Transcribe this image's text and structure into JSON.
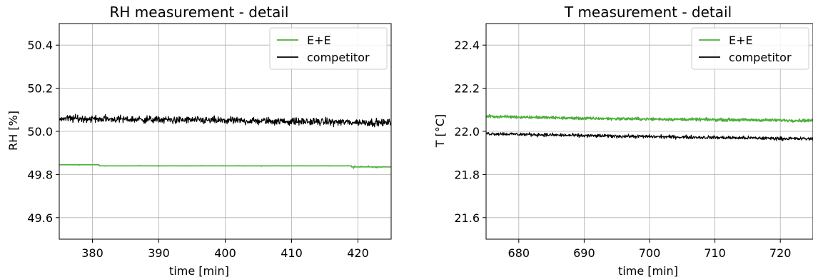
{
  "chart_data": [
    {
      "type": "line",
      "title": "RH measurement - detail",
      "xlabel": "time [min]",
      "ylabel": "RH [%]",
      "xlim": [
        375,
        425
      ],
      "ylim": [
        49.5,
        50.5
      ],
      "xticks": [
        380,
        390,
        400,
        410,
        420
      ],
      "yticks": [
        49.6,
        49.8,
        50.0,
        50.2,
        50.4
      ],
      "xtick_labels": [
        "380",
        "390",
        "400",
        "410",
        "420"
      ],
      "ytick_labels": [
        "49.6",
        "49.8",
        "50.0",
        "50.2",
        "50.4"
      ],
      "grid": true,
      "legend_position": "top-right",
      "series": [
        {
          "name": "E+E",
          "color": "#4daf3a",
          "baseline": 49.84,
          "noise": 0.004,
          "segments": [
            {
              "x": [
                375,
                381
              ],
              "y": 49.845,
              "noise": 0.003
            },
            {
              "x": [
                381,
                419
              ],
              "y": 49.84,
              "noise": 0.001
            },
            {
              "x": [
                419,
                425
              ],
              "y": 49.835,
              "noise": 0.004
            }
          ]
        },
        {
          "name": "competitor",
          "color": "#000000",
          "baseline": 50.05,
          "noise": 0.025,
          "trend": [
            {
              "x": 375,
              "y": 50.06
            },
            {
              "x": 425,
              "y": 50.04
            }
          ]
        }
      ]
    },
    {
      "type": "line",
      "title": "T measurement - detail",
      "xlabel": "time [min]",
      "ylabel": "T [°C]",
      "xlim": [
        675,
        725
      ],
      "ylim": [
        21.5,
        22.5
      ],
      "xticks": [
        680,
        690,
        700,
        710,
        720
      ],
      "yticks": [
        21.6,
        21.8,
        22.0,
        22.2,
        22.4
      ],
      "xtick_labels": [
        "680",
        "690",
        "700",
        "710",
        "720"
      ],
      "ytick_labels": [
        "21.6",
        "21.8",
        "22.0",
        "22.2",
        "22.4"
      ],
      "grid": true,
      "legend_position": "top-right",
      "series": [
        {
          "name": "E+E",
          "color": "#4daf3a",
          "noise": 0.01,
          "trend": [
            {
              "x": 675,
              "y": 22.07
            },
            {
              "x": 690,
              "y": 22.06
            },
            {
              "x": 725,
              "y": 22.05
            }
          ]
        },
        {
          "name": "competitor",
          "color": "#000000",
          "noise": 0.012,
          "trend": [
            {
              "x": 675,
              "y": 21.99
            },
            {
              "x": 690,
              "y": 21.98
            },
            {
              "x": 725,
              "y": 21.965
            }
          ]
        }
      ]
    }
  ]
}
